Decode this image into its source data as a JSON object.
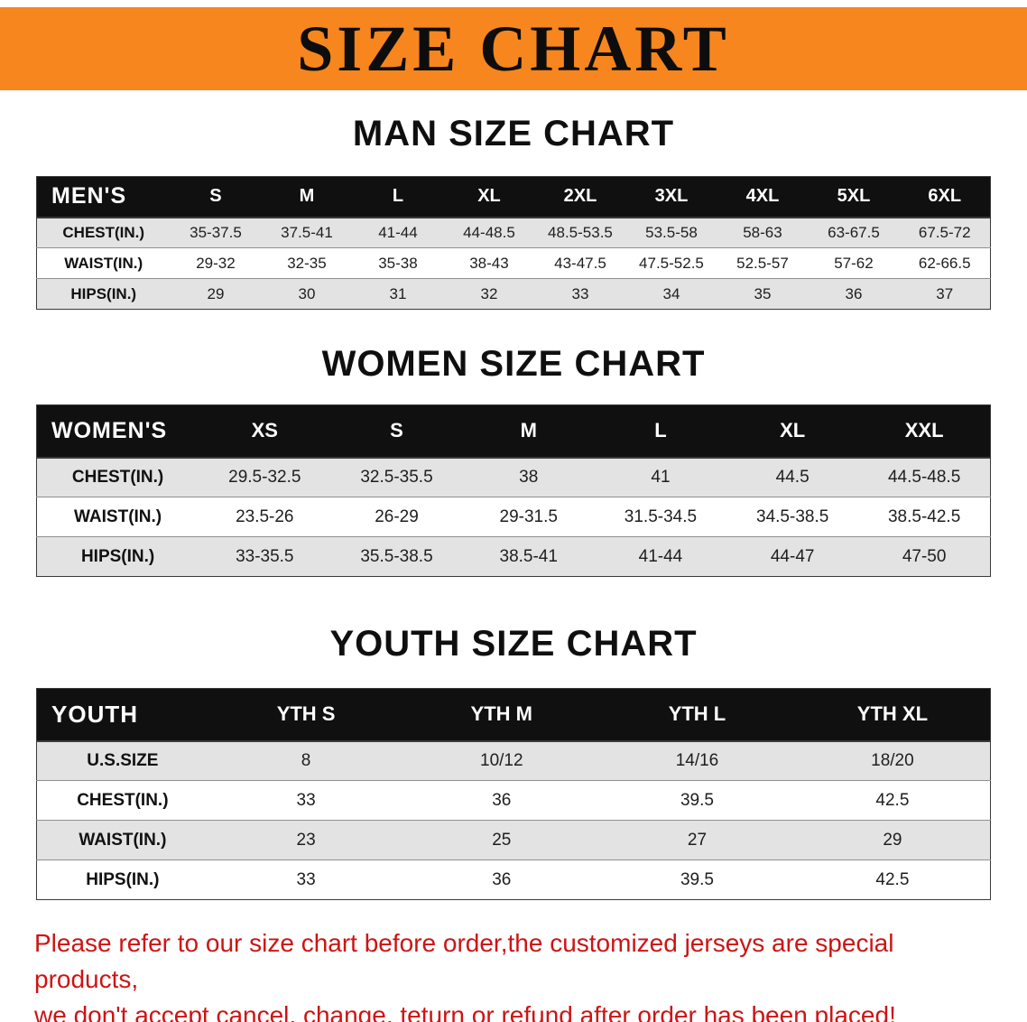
{
  "banner": {
    "title": "SIZE CHART"
  },
  "colors": {
    "banner_bg": "#f6861d",
    "table_header_bg": "#101010",
    "row_alt_bg": "#e3e3e3",
    "disclaimer_text": "#cd1414"
  },
  "sections": [
    {
      "id": "men",
      "heading": "MAN SIZE CHART",
      "table": {
        "columns": [
          "MEN'S",
          "S",
          "M",
          "L",
          "XL",
          "2XL",
          "3XL",
          "4XL",
          "5XL",
          "6XL"
        ],
        "rows": [
          {
            "label": "CHEST(IN.)",
            "values": [
              "35-37.5",
              "37.5-41",
              "41-44",
              "44-48.5",
              "48.5-53.5",
              "53.5-58",
              "58-63",
              "63-67.5",
              "67.5-72"
            ]
          },
          {
            "label": "WAIST(IN.)",
            "values": [
              "29-32",
              "32-35",
              "35-38",
              "38-43",
              "43-47.5",
              "47.5-52.5",
              "52.5-57",
              "57-62",
              "62-66.5"
            ]
          },
          {
            "label": "HIPS(IN.)",
            "values": [
              "29",
              "30",
              "31",
              "32",
              "33",
              "34",
              "35",
              "36",
              "37"
            ]
          }
        ]
      }
    },
    {
      "id": "women",
      "heading": "WOMEN SIZE CHART",
      "table": {
        "columns": [
          "WOMEN'S",
          "XS",
          "S",
          "M",
          "L",
          "XL",
          "XXL"
        ],
        "rows": [
          {
            "label": "CHEST(IN.)",
            "values": [
              "29.5-32.5",
              "32.5-35.5",
              "38",
              "41",
              "44.5",
              "44.5-48.5"
            ]
          },
          {
            "label": "WAIST(IN.)",
            "values": [
              "23.5-26",
              "26-29",
              "29-31.5",
              "31.5-34.5",
              "34.5-38.5",
              "38.5-42.5"
            ]
          },
          {
            "label": "HIPS(IN.)",
            "values": [
              "33-35.5",
              "35.5-38.5",
              "38.5-41",
              "41-44",
              "44-47",
              "47-50"
            ]
          }
        ]
      }
    },
    {
      "id": "youth",
      "heading": "YOUTH SIZE CHART",
      "table": {
        "columns": [
          "YOUTH",
          "YTH S",
          "YTH M",
          "YTH L",
          "YTH XL"
        ],
        "rows": [
          {
            "label": "U.S.SIZE",
            "values": [
              "8",
              "10/12",
              "14/16",
              "18/20"
            ]
          },
          {
            "label": "CHEST(IN.)",
            "values": [
              "33",
              "36",
              "39.5",
              "42.5"
            ]
          },
          {
            "label": "WAIST(IN.)",
            "values": [
              "23",
              "25",
              "27",
              "29"
            ]
          },
          {
            "label": "HIPS(IN.)",
            "values": [
              "33",
              "36",
              "39.5",
              "42.5"
            ]
          }
        ]
      }
    }
  ],
  "footer": {
    "line1": "Please refer to our size chart before order,the customized jerseys are special products,",
    "line2": "we don't accept cancel, change, teturn or refund after order has been placed!"
  }
}
